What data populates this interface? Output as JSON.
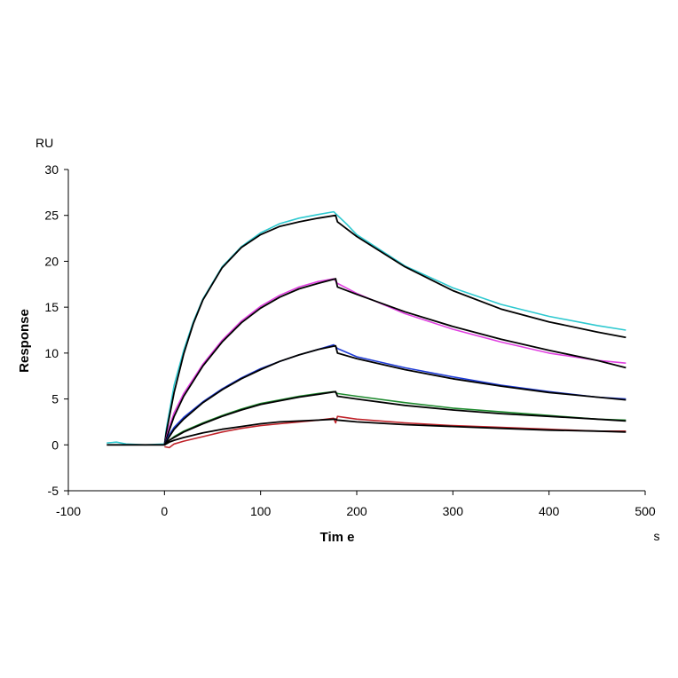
{
  "chart_data": {
    "type": "line",
    "xlabel": "Tim e",
    "ylabel": "Response",
    "x_unit": "s",
    "y_unit": "RU",
    "xlim": [
      -100,
      500
    ],
    "ylim": [
      -5,
      30
    ],
    "x_ticks": [
      -100,
      0,
      100,
      200,
      300,
      400,
      500
    ],
    "y_ticks": [
      -5,
      0,
      5,
      10,
      15,
      20,
      25,
      30
    ],
    "grid": false,
    "legend": "none",
    "series": [
      {
        "color": "#2EC9D0",
        "role": "measured",
        "points": [
          [
            -60,
            0.2
          ],
          [
            -50,
            0.3
          ],
          [
            -40,
            0.1
          ],
          [
            -20,
            0.0
          ],
          [
            0,
            0.1
          ],
          [
            2,
            1.8
          ],
          [
            10,
            6.5
          ],
          [
            20,
            10.3
          ],
          [
            30,
            13.4
          ],
          [
            40,
            15.9
          ],
          [
            60,
            19.4
          ],
          [
            80,
            21.6
          ],
          [
            100,
            23.1
          ],
          [
            120,
            24.1
          ],
          [
            140,
            24.7
          ],
          [
            160,
            25.1
          ],
          [
            176,
            25.4
          ],
          [
            180,
            25.0
          ],
          [
            190,
            24.0
          ],
          [
            200,
            22.9
          ],
          [
            250,
            19.5
          ],
          [
            300,
            17.1
          ],
          [
            350,
            15.3
          ],
          [
            400,
            14.0
          ],
          [
            450,
            13.0
          ],
          [
            480,
            12.5
          ]
        ]
      },
      {
        "color": "#000000",
        "role": "fit",
        "points": [
          [
            -60,
            0.0
          ],
          [
            0,
            0.0
          ],
          [
            2,
            1.4
          ],
          [
            10,
            5.7
          ],
          [
            20,
            9.9
          ],
          [
            30,
            13.2
          ],
          [
            40,
            15.8
          ],
          [
            60,
            19.3
          ],
          [
            80,
            21.5
          ],
          [
            100,
            22.9
          ],
          [
            120,
            23.8
          ],
          [
            140,
            24.3
          ],
          [
            160,
            24.7
          ],
          [
            178,
            25.0
          ],
          [
            180,
            24.3
          ],
          [
            200,
            22.7
          ],
          [
            250,
            19.4
          ],
          [
            300,
            16.8
          ],
          [
            350,
            14.8
          ],
          [
            400,
            13.4
          ],
          [
            450,
            12.3
          ],
          [
            480,
            11.7
          ]
        ]
      },
      {
        "color": "#E040E0",
        "role": "measured",
        "points": [
          [
            0,
            0.0
          ],
          [
            5,
            2.0
          ],
          [
            10,
            3.5
          ],
          [
            20,
            5.6
          ],
          [
            40,
            8.8
          ],
          [
            60,
            11.4
          ],
          [
            80,
            13.5
          ],
          [
            100,
            15.1
          ],
          [
            120,
            16.3
          ],
          [
            140,
            17.2
          ],
          [
            160,
            17.8
          ],
          [
            176,
            18.1
          ],
          [
            180,
            17.6
          ],
          [
            200,
            16.5
          ],
          [
            250,
            14.3
          ],
          [
            300,
            12.6
          ],
          [
            350,
            11.2
          ],
          [
            400,
            10.0
          ],
          [
            450,
            9.2
          ],
          [
            480,
            8.9
          ]
        ]
      },
      {
        "color": "#000000",
        "role": "fit",
        "points": [
          [
            0,
            0.0
          ],
          [
            5,
            1.6
          ],
          [
            10,
            3.1
          ],
          [
            20,
            5.3
          ],
          [
            40,
            8.6
          ],
          [
            60,
            11.2
          ],
          [
            80,
            13.3
          ],
          [
            100,
            14.9
          ],
          [
            120,
            16.1
          ],
          [
            140,
            17.0
          ],
          [
            160,
            17.6
          ],
          [
            178,
            18.1
          ],
          [
            180,
            17.2
          ],
          [
            200,
            16.4
          ],
          [
            250,
            14.5
          ],
          [
            300,
            12.9
          ],
          [
            350,
            11.5
          ],
          [
            400,
            10.3
          ],
          [
            450,
            9.2
          ],
          [
            480,
            8.4
          ]
        ]
      },
      {
        "color": "#1F3CD6",
        "role": "measured",
        "points": [
          [
            0,
            0.0
          ],
          [
            5,
            1.1
          ],
          [
            10,
            1.9
          ],
          [
            20,
            3.0
          ],
          [
            40,
            4.7
          ],
          [
            60,
            6.1
          ],
          [
            80,
            7.3
          ],
          [
            100,
            8.3
          ],
          [
            120,
            9.1
          ],
          [
            140,
            9.8
          ],
          [
            160,
            10.4
          ],
          [
            176,
            10.9
          ],
          [
            180,
            10.5
          ],
          [
            200,
            9.6
          ],
          [
            250,
            8.4
          ],
          [
            300,
            7.4
          ],
          [
            350,
            6.5
          ],
          [
            400,
            5.8
          ],
          [
            450,
            5.2
          ],
          [
            480,
            5.0
          ]
        ]
      },
      {
        "color": "#000000",
        "role": "fit",
        "points": [
          [
            0,
            0.0
          ],
          [
            5,
            0.9
          ],
          [
            10,
            1.7
          ],
          [
            20,
            2.8
          ],
          [
            40,
            4.6
          ],
          [
            60,
            6.0
          ],
          [
            80,
            7.2
          ],
          [
            100,
            8.2
          ],
          [
            120,
            9.1
          ],
          [
            140,
            9.8
          ],
          [
            160,
            10.4
          ],
          [
            178,
            10.8
          ],
          [
            180,
            10.0
          ],
          [
            200,
            9.4
          ],
          [
            250,
            8.2
          ],
          [
            300,
            7.2
          ],
          [
            350,
            6.4
          ],
          [
            400,
            5.7
          ],
          [
            450,
            5.2
          ],
          [
            480,
            4.9
          ]
        ]
      },
      {
        "color": "#1E8A2E",
        "role": "measured",
        "points": [
          [
            0,
            0.0
          ],
          [
            5,
            0.5
          ],
          [
            10,
            0.9
          ],
          [
            20,
            1.5
          ],
          [
            40,
            2.4
          ],
          [
            60,
            3.2
          ],
          [
            80,
            3.9
          ],
          [
            100,
            4.5
          ],
          [
            120,
            4.9
          ],
          [
            140,
            5.3
          ],
          [
            160,
            5.6
          ],
          [
            176,
            5.8
          ],
          [
            180,
            5.6
          ],
          [
            200,
            5.3
          ],
          [
            250,
            4.6
          ],
          [
            300,
            4.0
          ],
          [
            350,
            3.6
          ],
          [
            400,
            3.2
          ],
          [
            450,
            2.8
          ],
          [
            480,
            2.7
          ]
        ]
      },
      {
        "color": "#000000",
        "role": "fit",
        "points": [
          [
            0,
            0.0
          ],
          [
            5,
            0.5
          ],
          [
            10,
            0.8
          ],
          [
            20,
            1.4
          ],
          [
            40,
            2.3
          ],
          [
            60,
            3.1
          ],
          [
            80,
            3.8
          ],
          [
            100,
            4.4
          ],
          [
            120,
            4.8
          ],
          [
            140,
            5.2
          ],
          [
            160,
            5.5
          ],
          [
            178,
            5.8
          ],
          [
            180,
            5.3
          ],
          [
            200,
            5.0
          ],
          [
            250,
            4.3
          ],
          [
            300,
            3.8
          ],
          [
            350,
            3.4
          ],
          [
            400,
            3.1
          ],
          [
            450,
            2.8
          ],
          [
            480,
            2.6
          ]
        ]
      },
      {
        "color": "#C0232A",
        "role": "measured",
        "points": [
          [
            0,
            -0.2
          ],
          [
            5,
            -0.3
          ],
          [
            10,
            0.1
          ],
          [
            20,
            0.4
          ],
          [
            40,
            0.9
          ],
          [
            60,
            1.4
          ],
          [
            80,
            1.8
          ],
          [
            100,
            2.1
          ],
          [
            120,
            2.3
          ],
          [
            140,
            2.5
          ],
          [
            160,
            2.7
          ],
          [
            176,
            2.9
          ],
          [
            178,
            2.4
          ],
          [
            180,
            3.1
          ],
          [
            200,
            2.8
          ],
          [
            250,
            2.4
          ],
          [
            300,
            2.1
          ],
          [
            350,
            1.9
          ],
          [
            400,
            1.7
          ],
          [
            450,
            1.5
          ],
          [
            480,
            1.5
          ]
        ]
      },
      {
        "color": "#000000",
        "role": "fit",
        "points": [
          [
            0,
            0.0
          ],
          [
            5,
            0.3
          ],
          [
            10,
            0.5
          ],
          [
            20,
            0.8
          ],
          [
            40,
            1.3
          ],
          [
            60,
            1.7
          ],
          [
            80,
            2.0
          ],
          [
            100,
            2.3
          ],
          [
            120,
            2.5
          ],
          [
            140,
            2.6
          ],
          [
            160,
            2.7
          ],
          [
            178,
            2.8
          ],
          [
            180,
            2.7
          ],
          [
            200,
            2.5
          ],
          [
            250,
            2.2
          ],
          [
            300,
            2.0
          ],
          [
            350,
            1.8
          ],
          [
            400,
            1.6
          ],
          [
            450,
            1.5
          ],
          [
            480,
            1.4
          ]
        ]
      }
    ]
  }
}
